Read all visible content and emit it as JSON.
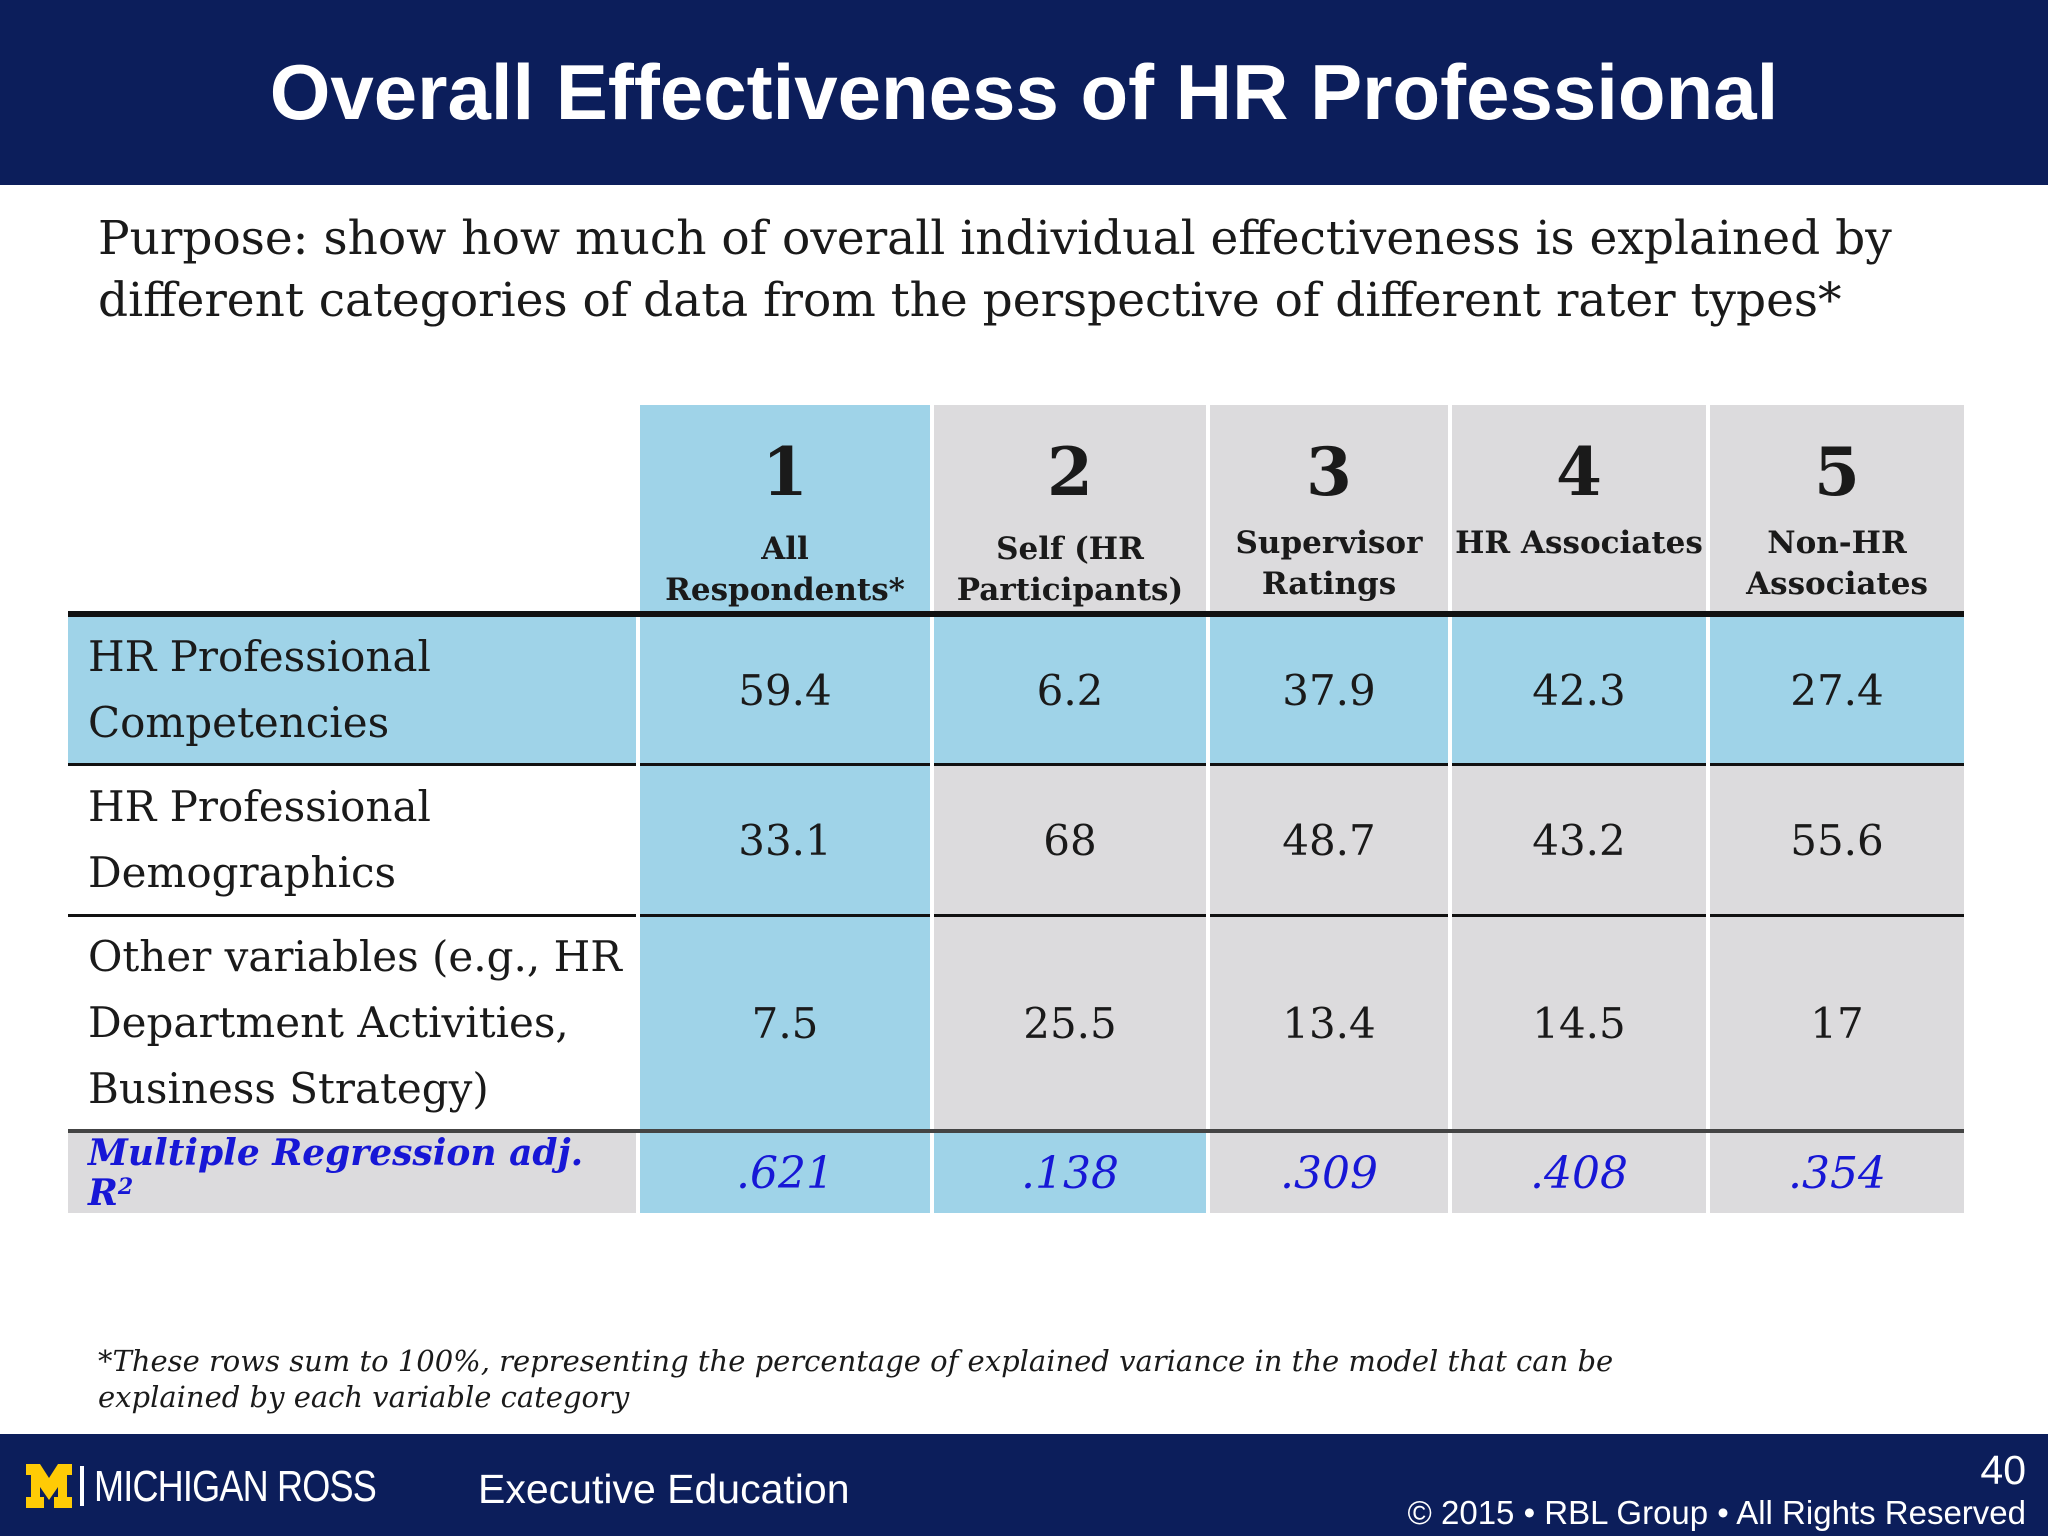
{
  "header": {
    "title": "Overall Effectiveness of HR Professional"
  },
  "purpose": "Purpose: show how much of overall individual effectiveness is explained by different categories of data from the perspective of different rater types*",
  "table": {
    "columns": [
      {
        "number": "1",
        "label": "All Respondents*",
        "shade": "blue"
      },
      {
        "number": "2",
        "label": "Self (HR Participants)",
        "shade": "gray"
      },
      {
        "number": "3",
        "label": "Supervisor Ratings",
        "shade": "gray"
      },
      {
        "number": "4",
        "label": "HR Associates",
        "shade": "gray"
      },
      {
        "number": "5",
        "label": "Non-HR Associates",
        "shade": "gray"
      }
    ],
    "rows": [
      {
        "label": "HR Professional Competencies",
        "values": [
          "59.4",
          "6.2",
          "37.9",
          "42.3",
          "27.4"
        ]
      },
      {
        "label": "HR Professional Demographics",
        "values": [
          "33.1",
          "68",
          "48.7",
          "43.2",
          "55.6"
        ]
      },
      {
        "label": "Other variables (e.g., HR Department Activities, Business Strategy)",
        "values": [
          "7.5",
          "25.5",
          "13.4",
          "14.5",
          "17"
        ]
      }
    ],
    "summary": {
      "label": "Multiple Regression adj. R",
      "superscript": "2",
      "values": [
        ".621",
        ".138",
        ".309",
        ".408",
        ".354"
      ]
    }
  },
  "footnote": "*These rows sum to 100%, representing the percentage of explained variance in the model that can be explained by each variable category",
  "footer": {
    "logo_text": "MICHIGAN ROSS",
    "program": "Executive Education",
    "page_number": "40",
    "copyright": "© 2015 • RBL Group • All Rights Reserved"
  },
  "colors": {
    "navy": "#0c1e5b",
    "table_blue": "#9fd3e8",
    "table_gray": "#dcdbdd",
    "regression_text": "#1717d6",
    "michigan_maize": "#ffcb05"
  }
}
